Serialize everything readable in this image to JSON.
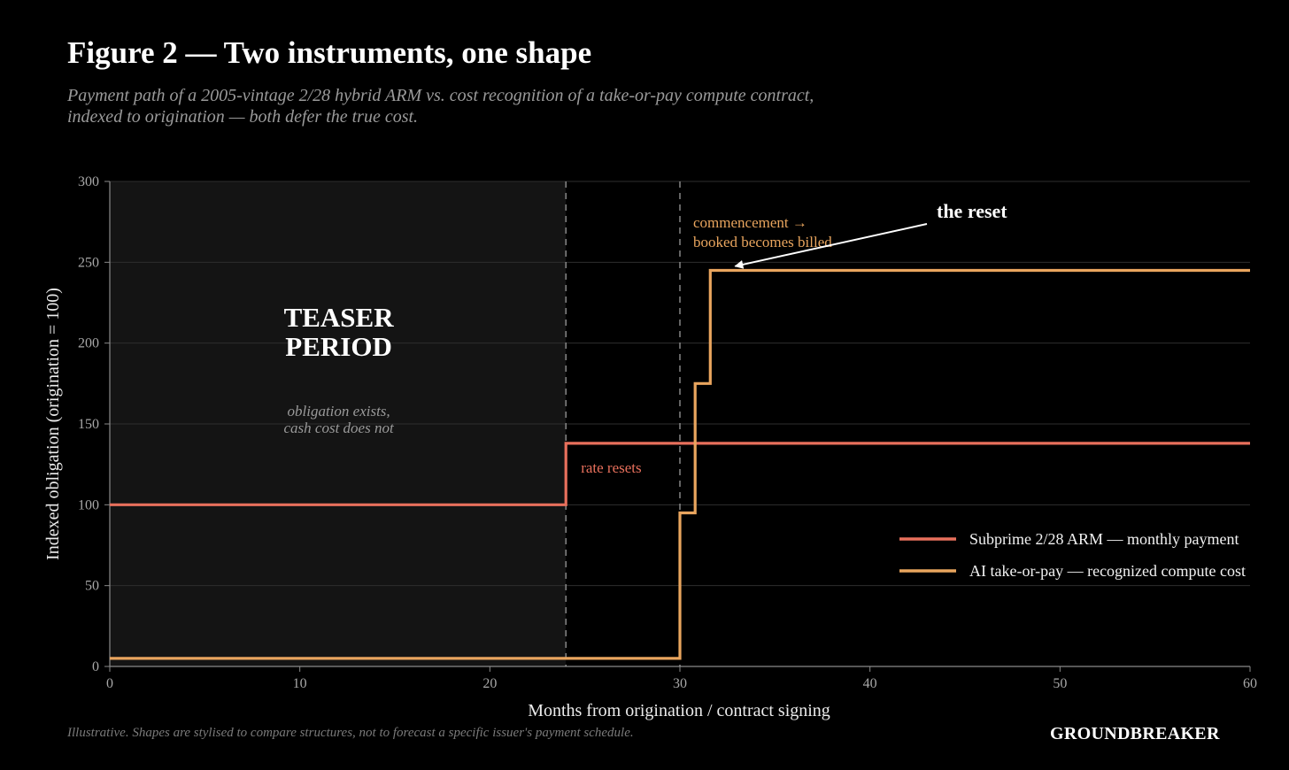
{
  "header": {
    "title": "Figure 2 — Two instruments, one shape",
    "subtitle_line1": "Payment path of a 2005-vintage 2/28 hybrid ARM vs. cost recognition of a take-or-pay compute contract,",
    "subtitle_line2": "indexed to origination — both defer the true cost."
  },
  "footer": {
    "note": "Illustrative. Shapes are stylised to compare structures, not to forecast a specific issuer's payment schedule.",
    "brand": "GROUNDBREAKER"
  },
  "chart_data": {
    "type": "line",
    "step": true,
    "xlabel": "Months from origination / contract signing",
    "ylabel": "Indexed obligation (origination = 100)",
    "xlim": [
      0,
      60
    ],
    "ylim": [
      0,
      300
    ],
    "x_ticks": [
      "0",
      "10",
      "20",
      "30",
      "40",
      "50",
      "60"
    ],
    "y_ticks": [
      "0",
      "50",
      "100",
      "150",
      "200",
      "250",
      "300"
    ],
    "grid": "horizontal",
    "legend_position": "lower-right",
    "series": [
      {
        "name": "Subprime 2/28 ARM — monthly payment",
        "color": "#e8705c",
        "points": [
          [
            0,
            100
          ],
          [
            24,
            100
          ],
          [
            24,
            138
          ],
          [
            60,
            138
          ]
        ]
      },
      {
        "name": "AI take-or-pay — recognized compute cost",
        "color": "#e9a55e",
        "points": [
          [
            0,
            5
          ],
          [
            30,
            5
          ],
          [
            30,
            95
          ],
          [
            30.8,
            95
          ],
          [
            30.8,
            175
          ],
          [
            31.6,
            175
          ],
          [
            31.6,
            245
          ],
          [
            60,
            245
          ]
        ]
      }
    ],
    "shaded_region": {
      "x_range": [
        0,
        24
      ],
      "title_line1": "TEASER",
      "title_line2": "PERIOD",
      "note_line1": "obligation exists,",
      "note_line2": "cash cost does not"
    },
    "vertical_lines": [
      24,
      30
    ],
    "annotations": {
      "rate_resets": "rate resets",
      "commencement_line1": "commencement →",
      "commencement_line2": "booked becomes billed",
      "the_reset": "the reset",
      "the_reset_arrow_target": [
        33,
        247
      ]
    }
  }
}
